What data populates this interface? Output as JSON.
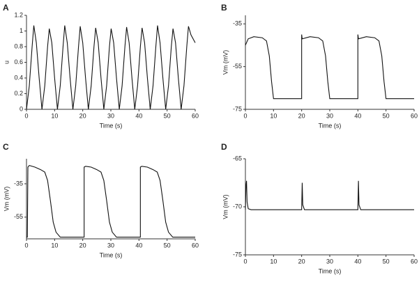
{
  "chart_data": [
    {
      "type": "line",
      "panel": "A",
      "x_label": "Time (s)",
      "y_label": "u",
      "color": "#111111",
      "xlim": [
        0,
        60
      ],
      "xticks": [
        0,
        10,
        20,
        30,
        40,
        50,
        60
      ],
      "ylim": [
        0,
        1.2
      ],
      "yticks": [
        0,
        0.2,
        0.4,
        0.6,
        0.8,
        1,
        1.2
      ],
      "x": [
        0,
        1,
        2,
        2.6,
        3.5,
        4.5,
        5.5,
        6.5,
        7.5,
        8.1,
        9,
        10,
        11,
        12,
        13,
        13.6,
        14.5,
        15.5,
        16.5,
        17.5,
        18.5,
        19.1,
        20,
        21,
        22,
        23,
        24,
        24.6,
        25.5,
        26.5,
        27.5,
        28.5,
        29.5,
        30.1,
        31,
        32,
        33,
        34,
        35,
        35.6,
        36.5,
        37.5,
        38.5,
        39.5,
        40.5,
        41.1,
        42,
        43,
        44,
        45,
        46,
        46.6,
        47.5,
        48.5,
        49.5,
        50.5,
        51.5,
        52.1,
        53,
        54,
        55,
        56,
        57,
        57.6,
        58.5,
        60
      ],
      "values": [
        0,
        0.3,
        0.8,
        1.07,
        0.85,
        0.4,
        0,
        0.3,
        0.8,
        1.03,
        0.85,
        0.4,
        0,
        0.3,
        0.8,
        1.07,
        0.85,
        0.4,
        0,
        0.3,
        0.8,
        1.06,
        0.85,
        0.4,
        0,
        0.3,
        0.8,
        1.04,
        0.85,
        0.4,
        0,
        0.3,
        0.8,
        1.03,
        0.85,
        0.4,
        0,
        0.3,
        0.8,
        1.05,
        0.85,
        0.4,
        0,
        0.3,
        0.8,
        1.04,
        0.85,
        0.4,
        0,
        0.3,
        0.8,
        1.07,
        0.85,
        0.4,
        0,
        0.3,
        0.8,
        1.03,
        0.85,
        0.4,
        0,
        0.3,
        0.8,
        1.06,
        0.95,
        0.85
      ]
    },
    {
      "type": "line",
      "panel": "B",
      "x_label": "Time (s)",
      "y_label": "Vm (mV)",
      "color": "#111111",
      "xlim": [
        0,
        60
      ],
      "xticks": [
        0,
        10,
        20,
        30,
        40,
        50,
        60
      ],
      "ylim": [
        -75,
        -31
      ],
      "yticks": [
        -75,
        -55,
        -35
      ],
      "x": [
        0,
        1,
        3,
        6,
        7.5,
        8.5,
        9.3,
        10,
        20,
        20,
        20.2,
        23,
        26,
        27.5,
        28.5,
        29.3,
        30,
        40,
        40,
        40.2,
        43,
        46,
        47.5,
        48.5,
        49.3,
        50,
        60
      ],
      "values": [
        -45,
        -42,
        -41,
        -41.5,
        -43,
        -50,
        -62,
        -70,
        -70,
        -40,
        -42,
        -41,
        -41.5,
        -43,
        -50,
        -62,
        -70,
        -70,
        -40,
        -42,
        -41,
        -41.5,
        -43,
        -50,
        -62,
        -70,
        -70
      ]
    },
    {
      "type": "line",
      "panel": "C",
      "x_label": "Time (s)",
      "y_label": "Vm (mV)",
      "color": "#111111",
      "xlim": [
        0,
        60
      ],
      "xticks": [
        0,
        10,
        20,
        30,
        40,
        50,
        60
      ],
      "ylim": [
        -68,
        -20
      ],
      "yticks": [
        -55,
        -35
      ],
      "x": [
        0,
        0.3,
        0.5,
        1,
        3,
        5,
        6.5,
        7.5,
        8.5,
        9.5,
        10.5,
        12,
        20.5,
        20.5,
        21,
        23,
        25,
        26.5,
        27.5,
        28.5,
        29.5,
        30.5,
        32,
        40.5,
        40.5,
        41,
        43,
        45,
        46.5,
        47.5,
        48.5,
        49.5,
        50.5,
        52,
        60
      ],
      "values": [
        -67,
        -67,
        -25,
        -24,
        -25,
        -26.5,
        -28,
        -33,
        -45,
        -58,
        -64,
        -67,
        -67,
        -25,
        -24.5,
        -25,
        -26.5,
        -28,
        -33,
        -45,
        -58,
        -64,
        -67,
        -67,
        -25,
        -24.5,
        -25,
        -26.5,
        -28,
        -33,
        -45,
        -58,
        -64,
        -67,
        -67
      ]
    },
    {
      "type": "line",
      "panel": "D",
      "x_label": "Time (s)",
      "y_label": "Vm (mV)",
      "color": "#111111",
      "xlim": [
        0,
        60
      ],
      "xticks": [
        0,
        10,
        20,
        30,
        40,
        50,
        60
      ],
      "ylim": [
        -75,
        -65
      ],
      "yticks": [
        -75,
        -70,
        -65
      ],
      "x": [
        0,
        0.2,
        0.4,
        0.6,
        1,
        2,
        20,
        20.2,
        20.4,
        21,
        40,
        40.2,
        40.4,
        41,
        60
      ],
      "values": [
        -70.3,
        -67.8,
        -67.3,
        -69.5,
        -70.2,
        -70.3,
        -70.3,
        -67.5,
        -69.8,
        -70.3,
        -70.3,
        -67.3,
        -69.8,
        -70.3,
        -70.3
      ]
    }
  ]
}
